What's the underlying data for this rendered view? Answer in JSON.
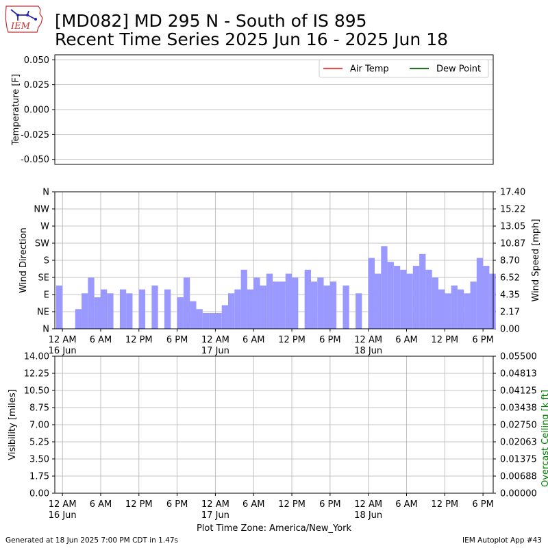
{
  "header": {
    "logo_text": "IEM",
    "title_line1": "[MD082] MD 295 N - South of IS 895",
    "title_line2": "Recent Time Series 2025 Jun 16 - 2025 Jun 18"
  },
  "footer": {
    "generated": "Generated at 18 Jun 2025 7:00 PM CDT in 1.47s",
    "app": "IEM Autoplot App #43",
    "timezone_label": "Plot Time Zone: America/New_York"
  },
  "colors": {
    "air_temp": "#d9534f",
    "dew_point": "#2e6b2e",
    "wind_bars": "#9999ff",
    "ceiling_label": "#008000",
    "grid": "#b0b0b0"
  },
  "chart_data": [
    {
      "type": "line",
      "ylabel": "Temperature [F]",
      "ylim": [
        -0.055,
        0.055
      ],
      "yticks": [
        "0.050",
        "0.025",
        "0.000",
        "-0.025",
        "-0.050"
      ],
      "ytick_values": [
        0.05,
        0.025,
        0.0,
        -0.025,
        -0.05
      ],
      "series": [
        {
          "name": "Air Temp",
          "values": []
        },
        {
          "name": "Dew Point",
          "values": []
        }
      ],
      "legend": "top-right",
      "grid": true
    },
    {
      "type": "bar",
      "ylabel": "Wind Direction",
      "y2label": "Wind Speed [mph]",
      "yticks_left": [
        "N",
        "NE",
        "E",
        "SE",
        "S",
        "SW",
        "W",
        "NW",
        "N"
      ],
      "yticks_right": [
        "0.00",
        "2.17",
        "4.35",
        "6.52",
        "8.70",
        "10.87",
        "13.05",
        "15.22",
        "17.40"
      ],
      "y2lim": [
        0,
        17.4
      ],
      "xlim_hours": [
        -1.2,
        67.6
      ],
      "xticks": [
        "12 AM",
        "6 AM",
        "12 PM",
        "6 PM",
        "12 AM",
        "6 AM",
        "12 PM",
        "6 PM",
        "12 AM",
        "6 AM",
        "12 PM",
        "6 PM"
      ],
      "xtick_hours": [
        0,
        6,
        12,
        18,
        24,
        30,
        36,
        42,
        48,
        54,
        60,
        66
      ],
      "xtick_dates": [
        "16 Jun",
        "",
        "",
        "",
        "17 Jun",
        "",
        "",
        "",
        "18 Jun",
        "",
        "",
        ""
      ],
      "series": [
        {
          "name": "Wind Speed",
          "x_hours": [
            -1,
            2,
            3,
            4,
            5,
            6,
            7,
            9,
            10,
            12,
            14,
            16,
            18,
            19,
            20,
            21,
            22,
            23,
            24,
            25,
            26,
            27,
            28,
            29,
            30,
            31,
            32,
            33,
            34,
            35,
            36,
            38,
            39,
            40,
            41,
            42,
            44,
            46,
            48,
            49,
            50,
            51,
            52,
            53,
            54,
            55,
            56,
            57,
            58,
            59,
            60,
            61,
            62,
            63,
            64,
            65,
            66,
            67
          ],
          "values": [
            5.5,
            2.5,
            4.5,
            6.5,
            4.0,
            5.0,
            4.5,
            5.0,
            4.5,
            5.0,
            5.5,
            5.0,
            4.0,
            6.5,
            3.5,
            2.5,
            2.0,
            2.0,
            2.0,
            3.0,
            4.5,
            5.0,
            7.5,
            5.0,
            6.5,
            5.5,
            7.0,
            6.0,
            6.0,
            7.0,
            6.5,
            7.5,
            6.0,
            6.5,
            5.5,
            6.0,
            5.5,
            4.5,
            9.0,
            7.0,
            10.5,
            8.5,
            8.0,
            7.5,
            7.0,
            8.0,
            9.5,
            7.5,
            6.5,
            5.0,
            4.5,
            5.5,
            5.0,
            4.5,
            6.0,
            9.0,
            8.0,
            7.0
          ]
        }
      ],
      "grid": true
    },
    {
      "type": "line",
      "ylabel": "Visibility [miles]",
      "y2label": "Overcast Ceiling [k ft]",
      "ylim": [
        0,
        14
      ],
      "y2lim": [
        0,
        0.055
      ],
      "yticks_left": [
        "0.00",
        "1.75",
        "3.50",
        "5.25",
        "7.00",
        "8.75",
        "10.50",
        "12.25",
        "14.00"
      ],
      "yticks_right": [
        "0.00000",
        "0.00688",
        "0.01375",
        "0.02063",
        "0.02750",
        "0.03438",
        "0.04125",
        "0.04813",
        "0.05500"
      ],
      "xticks": [
        "12 AM",
        "6 AM",
        "12 PM",
        "6 PM",
        "12 AM",
        "6 AM",
        "12 PM",
        "6 PM",
        "12 AM",
        "6 AM",
        "12 PM",
        "6 PM"
      ],
      "xtick_dates": [
        "16 Jun",
        "",
        "",
        "",
        "17 Jun",
        "",
        "",
        "",
        "18 Jun",
        "",
        "",
        ""
      ],
      "series": [],
      "grid": true
    }
  ]
}
